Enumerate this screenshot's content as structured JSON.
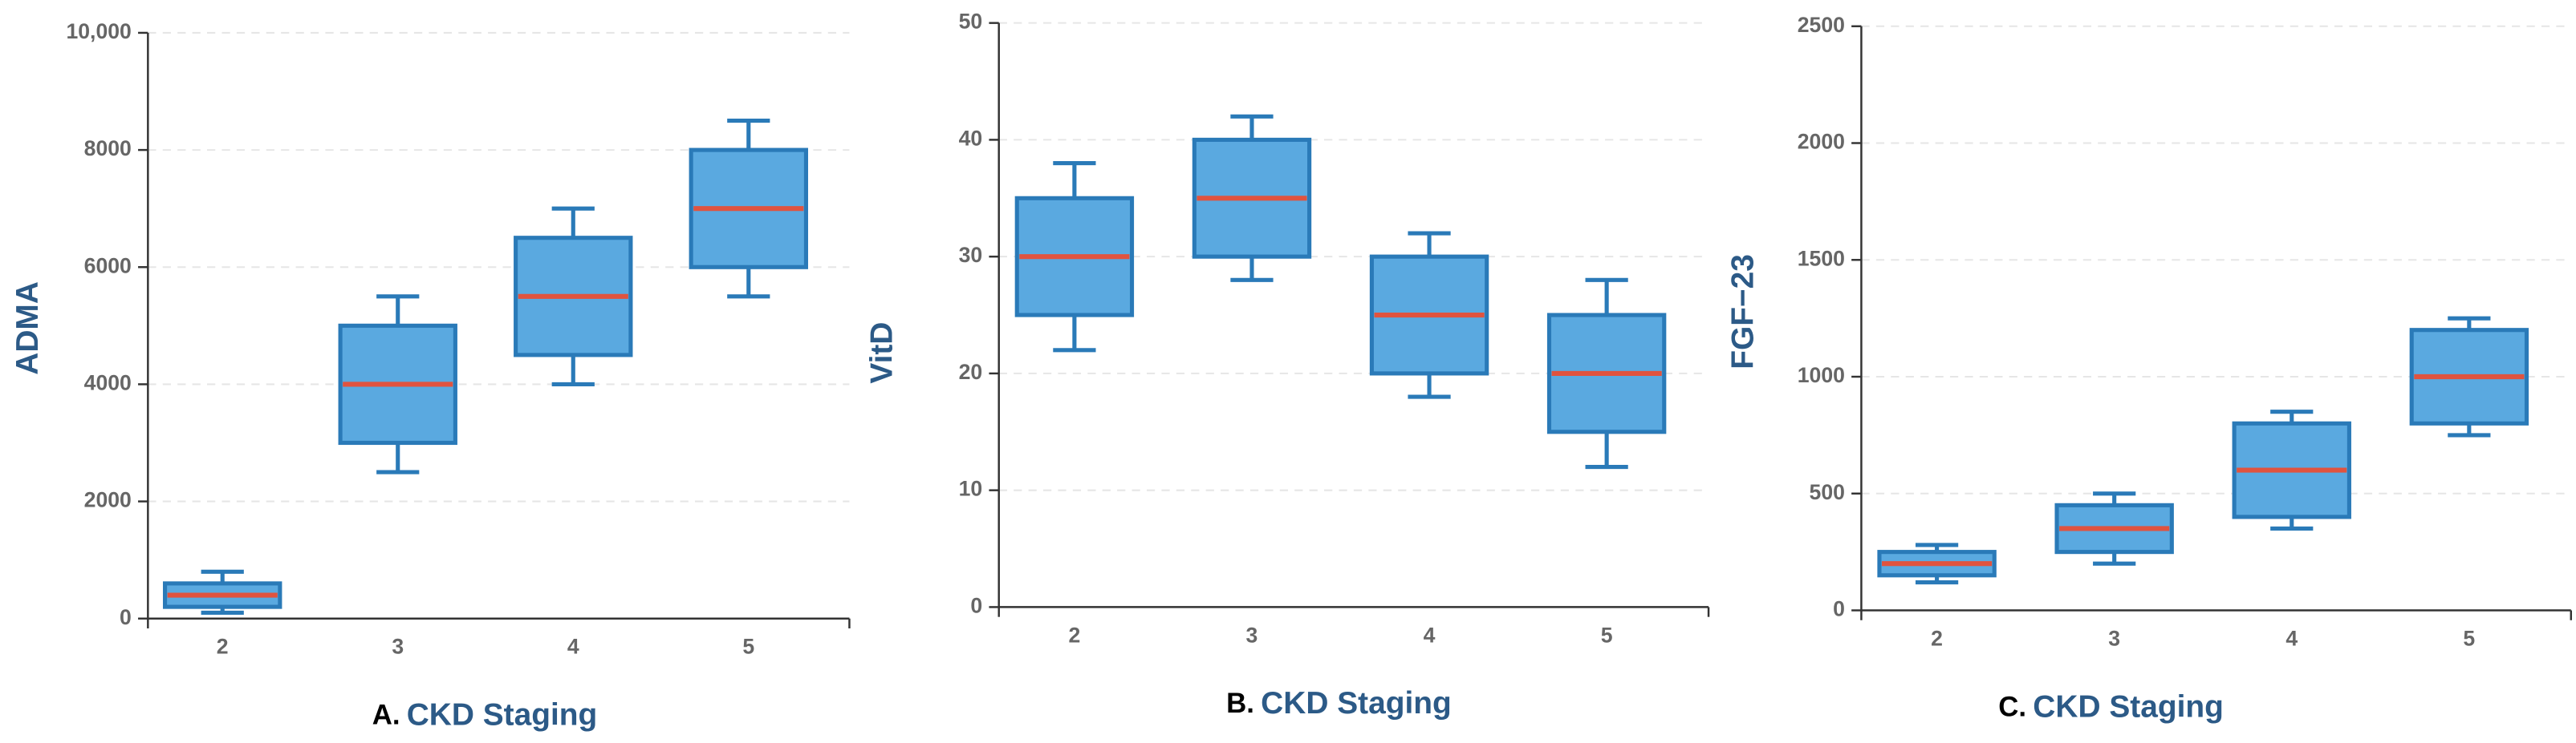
{
  "chart_data": [
    {
      "type": "box",
      "panel_label": "A.",
      "xlabel": "CKD Staging",
      "ylabel": "ADMA",
      "categories": [
        "2",
        "3",
        "4",
        "5"
      ],
      "color": "#5aa9e0",
      "edge_color": "#2a7ab8",
      "median_color": "#e0533f",
      "boxes": [
        {
          "whisker_low": 100,
          "q1": 200,
          "median": 400,
          "q3": 600,
          "whisker_high": 800
        },
        {
          "whisker_low": 2500,
          "q1": 3000,
          "median": 4000,
          "q3": 5000,
          "whisker_high": 5500
        },
        {
          "whisker_low": 4000,
          "q1": 4500,
          "median": 5500,
          "q3": 6500,
          "whisker_high": 7000
        },
        {
          "whisker_low": 5500,
          "q1": 6000,
          "median": 7000,
          "q3": 8000,
          "whisker_high": 8500
        }
      ],
      "ylim": [
        0,
        10000
      ],
      "yticks": [
        0,
        2000,
        4000,
        6000,
        8000,
        {
          "value": 10000,
          "label": "10,000"
        }
      ],
      "grid": true
    },
    {
      "type": "box",
      "panel_label": "B.",
      "xlabel": "CKD Staging",
      "ylabel": "VitD",
      "categories": [
        "2",
        "3",
        "4",
        "5"
      ],
      "color": "#5aa9e0",
      "edge_color": "#2a7ab8",
      "median_color": "#e0533f",
      "boxes": [
        {
          "whisker_low": 22,
          "q1": 25,
          "median": 30,
          "q3": 35,
          "whisker_high": 38
        },
        {
          "whisker_low": 28,
          "q1": 30,
          "median": 35,
          "q3": 40,
          "whisker_high": 42
        },
        {
          "whisker_low": 18,
          "q1": 20,
          "median": 25,
          "q3": 30,
          "whisker_high": 32
        },
        {
          "whisker_low": 12,
          "q1": 15,
          "median": 20,
          "q3": 25,
          "whisker_high": 28
        }
      ],
      "ylim": [
        0,
        50
      ],
      "yticks": [
        0,
        10,
        20,
        30,
        40,
        50
      ],
      "grid": true
    },
    {
      "type": "box",
      "panel_label": "C.",
      "xlabel": "CKD Staging",
      "ylabel": "FGF−23",
      "categories": [
        "2",
        "3",
        "4",
        "5"
      ],
      "color": "#5aa9e0",
      "edge_color": "#2a7ab8",
      "median_color": "#e0533f",
      "boxes": [
        {
          "whisker_low": 120,
          "q1": 150,
          "median": 200,
          "q3": 250,
          "whisker_high": 280
        },
        {
          "whisker_low": 200,
          "q1": 250,
          "median": 350,
          "q3": 450,
          "whisker_high": 500
        },
        {
          "whisker_low": 350,
          "q1": 400,
          "median": 600,
          "q3": 800,
          "whisker_high": 850
        },
        {
          "whisker_low": 750,
          "q1": 800,
          "median": 1000,
          "q3": 1200,
          "whisker_high": 1250
        }
      ],
      "ylim": [
        0,
        2500
      ],
      "yticks": [
        0,
        500,
        1000,
        1500,
        2000,
        2500
      ],
      "grid": true
    }
  ]
}
